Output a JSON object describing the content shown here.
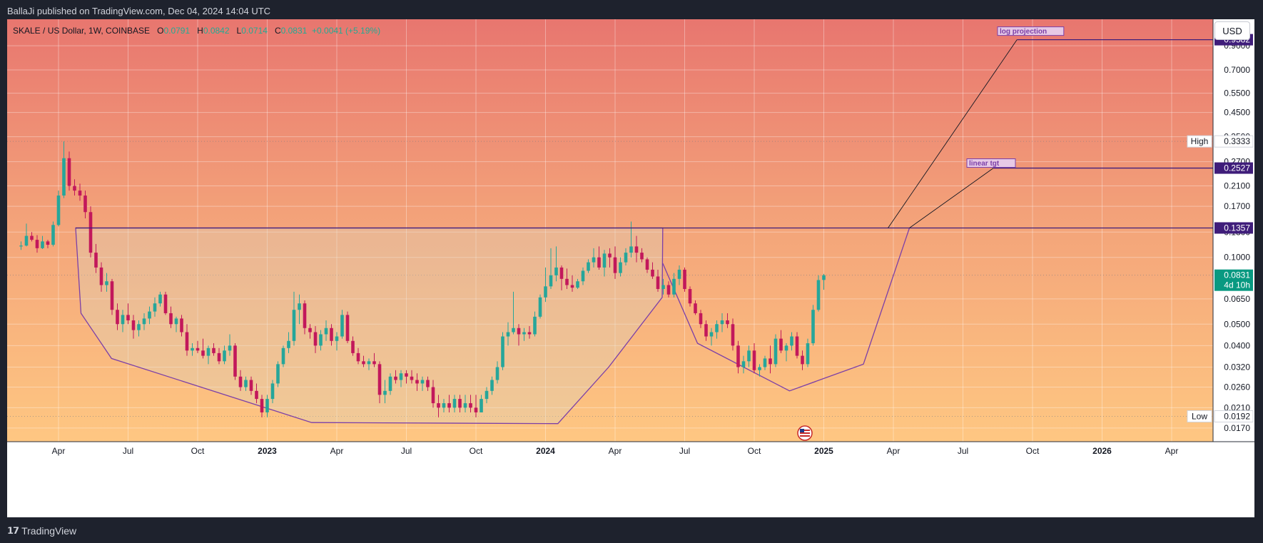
{
  "header": {
    "publisher": "BallaJi published on TradingView.com, Dec 04, 2024 14:04 UTC"
  },
  "legend": {
    "symbol": "SKALE / US Dollar, 1W, COINBASE",
    "o_label": "O",
    "o": "0.0791",
    "h_label": "H",
    "h": "0.0842",
    "l_label": "L",
    "l": "0.0714",
    "c_label": "C",
    "c": "0.0831",
    "change": "+0.0041 (+5.19%)"
  },
  "currency_button": "USD",
  "footer": {
    "brand": "TradingView"
  },
  "colors": {
    "bg_top": "#e8766f",
    "bg_bottom": "#fec782",
    "up": "#26a69a",
    "down": "#c2185b",
    "shape": "#7b3fa8",
    "level": "#3f1d7a",
    "price_tag": "#089981"
  },
  "chart_data": {
    "type": "candlestick",
    "title": "SKALE / US Dollar, 1W, COINBASE",
    "y_scale": "log",
    "ylim": [
      0.0152,
      1.15
    ],
    "y_ticks": [
      "0.9000",
      "0.7000",
      "0.5500",
      "0.4500",
      "0.3500",
      "0.2700",
      "0.2100",
      "0.1700",
      "0.1300",
      "0.1000",
      "0.0650",
      "0.0500",
      "0.0400",
      "0.0320",
      "0.0260",
      "0.0210",
      "0.0170"
    ],
    "x_ticks": [
      {
        "label": "Apr",
        "t": 0.0
      },
      {
        "label": "Jul",
        "t": 13.0
      },
      {
        "label": "Oct",
        "t": 26.0
      },
      {
        "label": "2023",
        "t": 39.0,
        "bold": true
      },
      {
        "label": "Apr",
        "t": 52.0
      },
      {
        "label": "Jul",
        "t": 65.0
      },
      {
        "label": "Oct",
        "t": 78.0
      },
      {
        "label": "2024",
        "t": 91.0,
        "bold": true
      },
      {
        "label": "Apr",
        "t": 104.0
      },
      {
        "label": "Jul",
        "t": 117.0
      },
      {
        "label": "Oct",
        "t": 130.0
      },
      {
        "label": "2025",
        "t": 143.0,
        "bold": true
      },
      {
        "label": "Apr",
        "t": 156.0
      },
      {
        "label": "Jul",
        "t": 169.0
      },
      {
        "label": "Oct",
        "t": 182.0
      },
      {
        "label": "2026",
        "t": 195.0,
        "bold": true
      },
      {
        "label": "Apr",
        "t": 208.0
      }
    ],
    "price_labels": [
      {
        "name": "high",
        "tag": "High",
        "value": "0.3333",
        "price": 0.3333
      },
      {
        "name": "low",
        "tag": "Low",
        "value": "0.0192",
        "price": 0.0192
      },
      {
        "name": "neckline",
        "value": "0.1357",
        "price": 0.1357
      },
      {
        "name": "linear-target",
        "value": "0.2527",
        "price": 0.2527
      },
      {
        "name": "log-projection",
        "value": "0.9582",
        "price": 0.9582
      }
    ],
    "current_price": {
      "value": "0.0831",
      "countdown": "4d 10h",
      "price": 0.0831
    },
    "annotations": [
      {
        "name": "log-projection",
        "text": "log projection"
      },
      {
        "name": "linear-target",
        "text": "linear tgt"
      }
    ],
    "neckline": 0.1357,
    "cup_shape_1": [
      [
        3.2,
        0.1357
      ],
      [
        4.2,
        0.056
      ],
      [
        9.9,
        0.035
      ],
      [
        47.3,
        0.018
      ],
      [
        93.3,
        0.0178
      ],
      [
        102.8,
        0.032
      ],
      [
        112.8,
        0.066
      ],
      [
        112.9,
        0.1357
      ]
    ],
    "cup_shape_2": [
      [
        112.9,
        0.094
      ],
      [
        119.4,
        0.041
      ],
      [
        136.6,
        0.025
      ],
      [
        150.4,
        0.033
      ],
      [
        159.0,
        0.1357
      ]
    ],
    "projection_lines": [
      {
        "from": [
          155.0,
          0.1357
        ],
        "to": [
          179.1,
          0.9582
        ],
        "level_from": 179.1,
        "level_to": 223.0,
        "price": 0.9582
      },
      {
        "from": [
          159.0,
          0.1357
        ],
        "to": [
          174.7,
          0.2527
        ],
        "level_from": 174.7,
        "level_to": 223.0,
        "price": 0.2527
      }
    ],
    "candles": [
      [
        0.112,
        0.118,
        0.108,
        0.113
      ],
      [
        0.113,
        0.142,
        0.112,
        0.125
      ],
      [
        0.125,
        0.13,
        0.118,
        0.12
      ],
      [
        0.12,
        0.126,
        0.105,
        0.11
      ],
      [
        0.11,
        0.125,
        0.109,
        0.118
      ],
      [
        0.118,
        0.12,
        0.11,
        0.114
      ],
      [
        0.114,
        0.145,
        0.112,
        0.14
      ],
      [
        0.14,
        0.2,
        0.138,
        0.19
      ],
      [
        0.19,
        0.333,
        0.185,
        0.28
      ],
      [
        0.28,
        0.3,
        0.2,
        0.21
      ],
      [
        0.21,
        0.225,
        0.19,
        0.2
      ],
      [
        0.2,
        0.215,
        0.18,
        0.19
      ],
      [
        0.19,
        0.2,
        0.15,
        0.16
      ],
      [
        0.16,
        0.17,
        0.1,
        0.105
      ],
      [
        0.105,
        0.115,
        0.085,
        0.09
      ],
      [
        0.09,
        0.095,
        0.07,
        0.075
      ],
      [
        0.075,
        0.085,
        0.07,
        0.078
      ],
      [
        0.078,
        0.08,
        0.055,
        0.058
      ],
      [
        0.058,
        0.062,
        0.047,
        0.05
      ],
      [
        0.05,
        0.058,
        0.046,
        0.055
      ],
      [
        0.055,
        0.062,
        0.05,
        0.052
      ],
      [
        0.052,
        0.055,
        0.043,
        0.047
      ],
      [
        0.047,
        0.052,
        0.044,
        0.05
      ],
      [
        0.05,
        0.056,
        0.047,
        0.053
      ],
      [
        0.053,
        0.06,
        0.05,
        0.057
      ],
      [
        0.057,
        0.066,
        0.054,
        0.062
      ],
      [
        0.062,
        0.07,
        0.06,
        0.068
      ],
      [
        0.068,
        0.07,
        0.055,
        0.056
      ],
      [
        0.056,
        0.06,
        0.048,
        0.05
      ],
      [
        0.05,
        0.054,
        0.046,
        0.053
      ],
      [
        0.053,
        0.055,
        0.044,
        0.046
      ],
      [
        0.046,
        0.05,
        0.036,
        0.038
      ],
      [
        0.038,
        0.041,
        0.036,
        0.039
      ],
      [
        0.039,
        0.042,
        0.037,
        0.038
      ],
      [
        0.038,
        0.043,
        0.035,
        0.036
      ],
      [
        0.036,
        0.04,
        0.033,
        0.039
      ],
      [
        0.039,
        0.041,
        0.036,
        0.037
      ],
      [
        0.037,
        0.039,
        0.033,
        0.034
      ],
      [
        0.034,
        0.04,
        0.033,
        0.038
      ],
      [
        0.038,
        0.045,
        0.036,
        0.04
      ],
      [
        0.04,
        0.041,
        0.028,
        0.029
      ],
      [
        0.029,
        0.031,
        0.025,
        0.026
      ],
      [
        0.026,
        0.029,
        0.025,
        0.028
      ],
      [
        0.028,
        0.029,
        0.024,
        0.025
      ],
      [
        0.025,
        0.027,
        0.022,
        0.023
      ],
      [
        0.023,
        0.024,
        0.019,
        0.02
      ],
      [
        0.02,
        0.024,
        0.019,
        0.023
      ],
      [
        0.023,
        0.028,
        0.022,
        0.027
      ],
      [
        0.027,
        0.034,
        0.026,
        0.033
      ],
      [
        0.033,
        0.04,
        0.032,
        0.039
      ],
      [
        0.039,
        0.046,
        0.037,
        0.042
      ],
      [
        0.042,
        0.07,
        0.04,
        0.058
      ],
      [
        0.058,
        0.068,
        0.05,
        0.062
      ],
      [
        0.062,
        0.064,
        0.045,
        0.048
      ],
      [
        0.048,
        0.05,
        0.043,
        0.046
      ],
      [
        0.046,
        0.049,
        0.037,
        0.04
      ],
      [
        0.04,
        0.047,
        0.038,
        0.045
      ],
      [
        0.045,
        0.052,
        0.042,
        0.048
      ],
      [
        0.048,
        0.05,
        0.04,
        0.042
      ],
      [
        0.042,
        0.046,
        0.038,
        0.044
      ],
      [
        0.044,
        0.058,
        0.043,
        0.055
      ],
      [
        0.055,
        0.057,
        0.041,
        0.042
      ],
      [
        0.042,
        0.044,
        0.036,
        0.037
      ],
      [
        0.037,
        0.039,
        0.033,
        0.034
      ],
      [
        0.034,
        0.036,
        0.032,
        0.033
      ],
      [
        0.033,
        0.035,
        0.031,
        0.034
      ],
      [
        0.034,
        0.037,
        0.032,
        0.033
      ],
      [
        0.033,
        0.034,
        0.022,
        0.024
      ],
      [
        0.024,
        0.028,
        0.022,
        0.025
      ],
      [
        0.025,
        0.03,
        0.024,
        0.029
      ],
      [
        0.029,
        0.031,
        0.027,
        0.028
      ],
      [
        0.028,
        0.031,
        0.026,
        0.03
      ],
      [
        0.03,
        0.031,
        0.027,
        0.029
      ],
      [
        0.029,
        0.031,
        0.027,
        0.028
      ],
      [
        0.028,
        0.03,
        0.025,
        0.027
      ],
      [
        0.027,
        0.029,
        0.025,
        0.028
      ],
      [
        0.028,
        0.029,
        0.025,
        0.026
      ],
      [
        0.026,
        0.028,
        0.021,
        0.022
      ],
      [
        0.022,
        0.024,
        0.019,
        0.021
      ],
      [
        0.021,
        0.023,
        0.02,
        0.022
      ],
      [
        0.022,
        0.024,
        0.02,
        0.021
      ],
      [
        0.021,
        0.024,
        0.02,
        0.023
      ],
      [
        0.023,
        0.024,
        0.02,
        0.021
      ],
      [
        0.021,
        0.024,
        0.02,
        0.022
      ],
      [
        0.022,
        0.024,
        0.02,
        0.021
      ],
      [
        0.021,
        0.024,
        0.019,
        0.02
      ],
      [
        0.02,
        0.024,
        0.02,
        0.023
      ],
      [
        0.023,
        0.026,
        0.022,
        0.025
      ],
      [
        0.025,
        0.029,
        0.024,
        0.028
      ],
      [
        0.028,
        0.034,
        0.027,
        0.032
      ],
      [
        0.032,
        0.046,
        0.031,
        0.044
      ],
      [
        0.044,
        0.051,
        0.04,
        0.046
      ],
      [
        0.046,
        0.07,
        0.045,
        0.048
      ],
      [
        0.048,
        0.05,
        0.04,
        0.045
      ],
      [
        0.045,
        0.048,
        0.042,
        0.046
      ],
      [
        0.046,
        0.049,
        0.043,
        0.045
      ],
      [
        0.045,
        0.057,
        0.044,
        0.054
      ],
      [
        0.054,
        0.068,
        0.053,
        0.066
      ],
      [
        0.066,
        0.09,
        0.063,
        0.074
      ],
      [
        0.074,
        0.11,
        0.072,
        0.083
      ],
      [
        0.083,
        0.112,
        0.078,
        0.09
      ],
      [
        0.09,
        0.092,
        0.071,
        0.08
      ],
      [
        0.08,
        0.089,
        0.072,
        0.075
      ],
      [
        0.075,
        0.083,
        0.07,
        0.073
      ],
      [
        0.073,
        0.08,
        0.072,
        0.078
      ],
      [
        0.078,
        0.09,
        0.075,
        0.087
      ],
      [
        0.087,
        0.098,
        0.085,
        0.095
      ],
      [
        0.095,
        0.11,
        0.09,
        0.1
      ],
      [
        0.1,
        0.112,
        0.088,
        0.09
      ],
      [
        0.09,
        0.108,
        0.082,
        0.104
      ],
      [
        0.104,
        0.11,
        0.09,
        0.1
      ],
      [
        0.1,
        0.112,
        0.08,
        0.085
      ],
      [
        0.085,
        0.1,
        0.082,
        0.095
      ],
      [
        0.095,
        0.11,
        0.092,
        0.105
      ],
      [
        0.105,
        0.145,
        0.1,
        0.112
      ],
      [
        0.112,
        0.125,
        0.095,
        0.105
      ],
      [
        0.105,
        0.11,
        0.095,
        0.098
      ],
      [
        0.098,
        0.1,
        0.085,
        0.088
      ],
      [
        0.088,
        0.095,
        0.08,
        0.082
      ],
      [
        0.082,
        0.088,
        0.07,
        0.072
      ],
      [
        0.072,
        0.08,
        0.068,
        0.075
      ],
      [
        0.075,
        0.078,
        0.066,
        0.068
      ],
      [
        0.068,
        0.085,
        0.066,
        0.08
      ],
      [
        0.08,
        0.092,
        0.075,
        0.088
      ],
      [
        0.088,
        0.09,
        0.07,
        0.072
      ],
      [
        0.072,
        0.074,
        0.06,
        0.062
      ],
      [
        0.062,
        0.064,
        0.055,
        0.056
      ],
      [
        0.056,
        0.058,
        0.048,
        0.05
      ],
      [
        0.05,
        0.052,
        0.042,
        0.044
      ],
      [
        0.044,
        0.048,
        0.04,
        0.046
      ],
      [
        0.046,
        0.052,
        0.043,
        0.05
      ],
      [
        0.05,
        0.056,
        0.046,
        0.052
      ],
      [
        0.052,
        0.056,
        0.048,
        0.05
      ],
      [
        0.05,
        0.053,
        0.038,
        0.04
      ],
      [
        0.04,
        0.042,
        0.03,
        0.032
      ],
      [
        0.032,
        0.036,
        0.03,
        0.034
      ],
      [
        0.034,
        0.04,
        0.032,
        0.038
      ],
      [
        0.038,
        0.041,
        0.03,
        0.031
      ],
      [
        0.031,
        0.033,
        0.029,
        0.032
      ],
      [
        0.032,
        0.036,
        0.031,
        0.035
      ],
      [
        0.035,
        0.04,
        0.03,
        0.033
      ],
      [
        0.033,
        0.045,
        0.032,
        0.043
      ],
      [
        0.043,
        0.047,
        0.037,
        0.038
      ],
      [
        0.038,
        0.041,
        0.034,
        0.04
      ],
      [
        0.04,
        0.046,
        0.038,
        0.044
      ],
      [
        0.044,
        0.046,
        0.035,
        0.036
      ],
      [
        0.036,
        0.038,
        0.031,
        0.033
      ],
      [
        0.033,
        0.043,
        0.032,
        0.041
      ],
      [
        0.041,
        0.061,
        0.04,
        0.058
      ],
      [
        0.058,
        0.083,
        0.057,
        0.079
      ],
      [
        0.0791,
        0.0842,
        0.0714,
        0.0831
      ]
    ]
  }
}
